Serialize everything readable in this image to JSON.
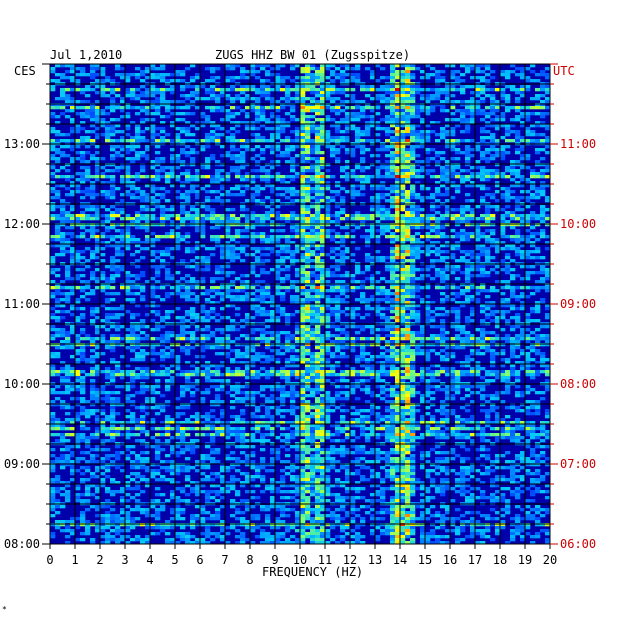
{
  "header": {
    "date": "Jul 1,2010",
    "title": "ZUGS HHZ BW 01 (Zugsspitze)",
    "left_tz": "CES",
    "right_tz": "UTC"
  },
  "colors": {
    "left_axis": "#000000",
    "right_axis": "#cc0000",
    "background_low": "#0000aa",
    "grid": "#000000"
  },
  "chart_data": {
    "type": "heatmap",
    "title": "ZUGS HHZ BW 01 (Zugsspitze)",
    "xlabel": "FREQUENCY (HZ)",
    "xlim": [
      0,
      20
    ],
    "x_ticks": [
      "0",
      "1",
      "2",
      "3",
      "4",
      "5",
      "6",
      "7",
      "8",
      "9",
      "10",
      "11",
      "12",
      "13",
      "14",
      "15",
      "16",
      "17",
      "18",
      "19",
      "20"
    ],
    "y_left_ticks": [
      "08:00",
      "09:00",
      "10:00",
      "11:00",
      "12:00",
      "13:00"
    ],
    "y_right_ticks": [
      "06:00",
      "07:00",
      "08:00",
      "09:00",
      "10:00",
      "11:00"
    ],
    "y_range_hours": [
      8.0,
      14.0
    ],
    "dominant_frequency_bands_hz": [
      10.2,
      10.8,
      13.9,
      14.3
    ],
    "grid": true
  }
}
